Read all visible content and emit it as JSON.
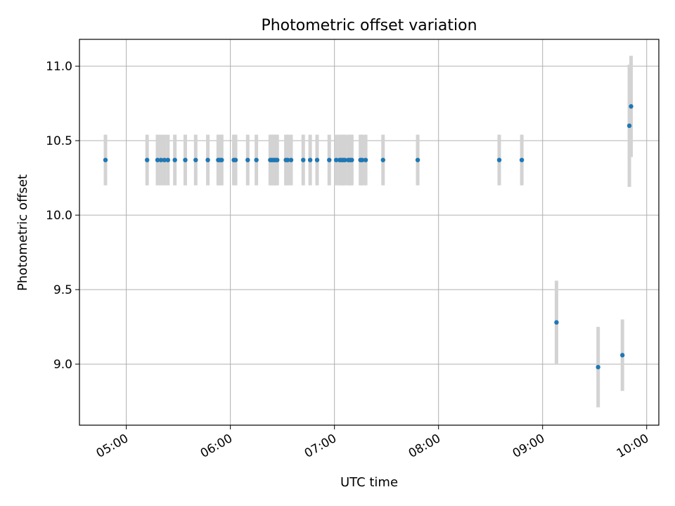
{
  "chart_data": {
    "type": "scatter",
    "title": "Photometric offset variation",
    "xlabel": "UTC time",
    "ylabel": "Photometric offset",
    "xlim": [
      "04:33",
      "10:07"
    ],
    "ylim": [
      8.59,
      11.18
    ],
    "grid": true,
    "x_ticks": [
      "05:00",
      "06:00",
      "07:00",
      "08:00",
      "09:00",
      "10:00"
    ],
    "y_ticks": [
      "9.0",
      "9.5",
      "10.0",
      "10.5",
      "11.0"
    ],
    "colors": {
      "point": "#1f77b4",
      "errorbar": "#d3d3d3",
      "grid": "#b0b0b0"
    },
    "series": [
      {
        "x": [
          "04:48",
          "05:12",
          "05:18",
          "05:20",
          "05:22",
          "05:24",
          "05:28",
          "05:34",
          "05:40",
          "05:47",
          "05:53",
          "05:54",
          "05:55",
          "06:02",
          "06:03",
          "06:10",
          "06:15",
          "06:23",
          "06:24",
          "06:25",
          "06:26",
          "06:27",
          "06:32",
          "06:33",
          "06:35",
          "06:42",
          "06:46",
          "06:50",
          "06:57",
          "07:01",
          "07:03",
          "07:04",
          "07:05",
          "07:06",
          "07:08",
          "07:09",
          "07:10",
          "07:15",
          "07:16",
          "07:18",
          "07:28",
          "07:48",
          "08:35",
          "08:48",
          "09:08",
          "09:32",
          "09:46",
          "09:50",
          "09:51"
        ],
        "y": [
          10.37,
          10.37,
          10.37,
          10.37,
          10.37,
          10.37,
          10.37,
          10.37,
          10.37,
          10.37,
          10.37,
          10.37,
          10.37,
          10.37,
          10.37,
          10.37,
          10.37,
          10.37,
          10.37,
          10.37,
          10.37,
          10.37,
          10.37,
          10.37,
          10.37,
          10.37,
          10.37,
          10.37,
          10.37,
          10.37,
          10.37,
          10.37,
          10.37,
          10.37,
          10.37,
          10.37,
          10.37,
          10.37,
          10.37,
          10.37,
          10.37,
          10.37,
          10.37,
          10.37,
          9.28,
          8.98,
          9.06,
          10.6,
          10.73
        ],
        "err": [
          0.17,
          0.17,
          0.17,
          0.17,
          0.17,
          0.17,
          0.17,
          0.17,
          0.17,
          0.17,
          0.17,
          0.17,
          0.17,
          0.17,
          0.17,
          0.17,
          0.17,
          0.17,
          0.17,
          0.17,
          0.17,
          0.17,
          0.17,
          0.17,
          0.17,
          0.17,
          0.17,
          0.17,
          0.17,
          0.17,
          0.17,
          0.17,
          0.17,
          0.17,
          0.17,
          0.17,
          0.17,
          0.17,
          0.17,
          0.17,
          0.17,
          0.17,
          0.17,
          0.17,
          0.28,
          0.27,
          0.24,
          0.41,
          0.34
        ]
      }
    ]
  }
}
